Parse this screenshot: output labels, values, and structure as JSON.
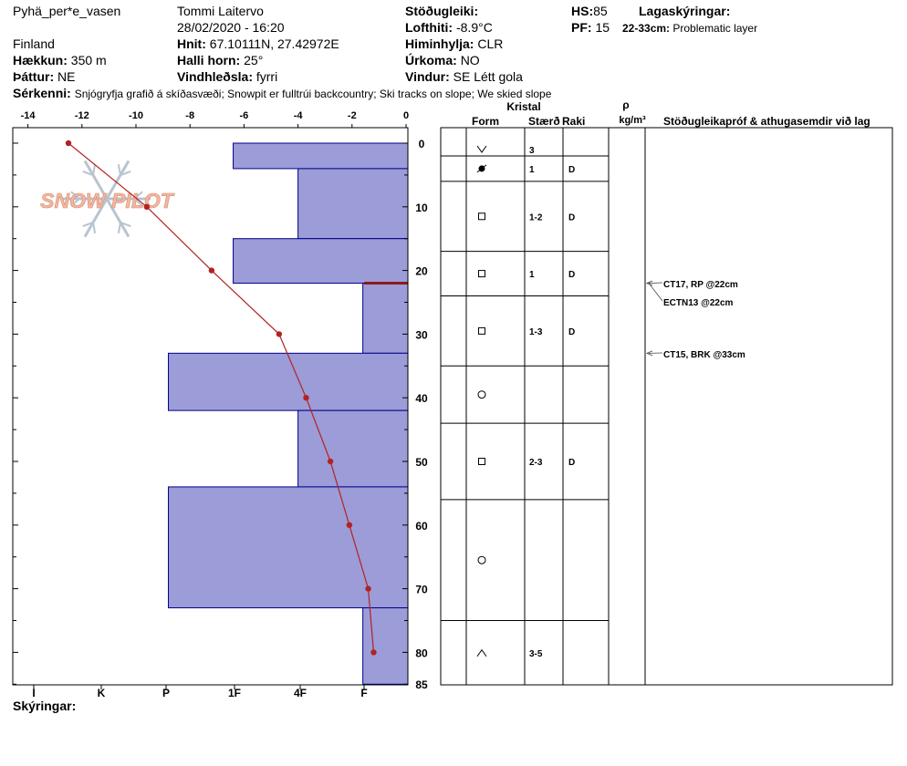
{
  "header": {
    "site": "Pyhä_per*e_vasen",
    "observer": "Tommi Laitervo",
    "datetime": "28/02/2020 - 16:20",
    "country": "Finland",
    "elevation_label": "Hækkun:",
    "elevation": "350 m",
    "aspect_label": "Þáttur:",
    "aspect": "NE",
    "coords_label": "Hnit:",
    "coords": "67.10111N, 27.42972E",
    "slope_label": "Halli horn:",
    "slope": "25°",
    "wind_loading_label": "Vindhleðsla:",
    "wind_loading": "fyrri",
    "stability_label": "Stöðugleiki:",
    "stability": "",
    "airtemp_label": "Lofthiti:",
    "airtemp": "-8.9°C",
    "sky_label": "Himinhylja:",
    "sky": "CLR",
    "precip_label": "Úrkoma:",
    "precip": "NO",
    "wind_label": "Vindur:",
    "wind": "SE Létt gola",
    "hs_label": "HS:",
    "hs": "85",
    "pf_label": "PF:",
    "pf": "15",
    "layer_notes_label": "Lagaskýringar:",
    "layer_note_range": "22-33cm:",
    "layer_note_text": "Problematic layer",
    "specifics_label": "Sérkenni:",
    "specifics": "Snjógryfja grafið á skíðasvæði; Snowpit er fulltrúi backcountry; Ski tracks on slope; We skied slope",
    "notes_label": "Skýringar:"
  },
  "logo_text": "SNOW PILOT",
  "columns": {
    "kristal": "Kristal",
    "form": "Form",
    "size": "Stærð",
    "moisture": "Raki",
    "rho": "ρ",
    "density_unit": "kg/m³",
    "tests": "Stöðugleikapróf & athugasemdir við lag"
  },
  "colors": {
    "hardness_fill": "#9c9cd8",
    "hardness_stroke": "#00008b",
    "temp_line": "#b22222",
    "problem_layer": "#8b1a1a",
    "logo": "#f2b7a0",
    "flake": "#b8c4d0"
  },
  "chart_data": {
    "type": "snow_profile",
    "depth_axis": {
      "range": [
        0,
        85
      ],
      "ticks": [
        0,
        10,
        20,
        30,
        40,
        50,
        60,
        70,
        80,
        85
      ]
    },
    "temperature_axis": {
      "range": [
        -14,
        0
      ],
      "ticks": [
        -14,
        -12,
        -10,
        -8,
        -6,
        -4,
        -2,
        0
      ]
    },
    "hardness_axis": {
      "labels": [
        "I",
        "K",
        "P",
        "1F",
        "4F",
        "F"
      ]
    },
    "hardness_layers": [
      {
        "top": 0,
        "bottom": 4,
        "temp_equiv": -6.4
      },
      {
        "top": 4,
        "bottom": 15,
        "temp_equiv": -4.0
      },
      {
        "top": 15,
        "bottom": 22,
        "temp_equiv": -6.4
      },
      {
        "top": 22,
        "bottom": 33,
        "temp_equiv": -1.6
      },
      {
        "top": 33,
        "bottom": 42,
        "temp_equiv": -8.8
      },
      {
        "top": 42,
        "bottom": 54,
        "temp_equiv": -4.0
      },
      {
        "top": 54,
        "bottom": 73,
        "temp_equiv": -8.8
      },
      {
        "top": 73,
        "bottom": 85,
        "temp_equiv": -1.6
      }
    ],
    "problem_layer_depth": 22,
    "temperature_profile": [
      {
        "depth": 0,
        "temp": -12.5
      },
      {
        "depth": 10,
        "temp": -9.6
      },
      {
        "depth": 20,
        "temp": -7.2
      },
      {
        "depth": 30,
        "temp": -4.7
      },
      {
        "depth": 40,
        "temp": -3.7
      },
      {
        "depth": 50,
        "temp": -2.8
      },
      {
        "depth": 60,
        "temp": -2.1
      },
      {
        "depth": 70,
        "temp": -1.4
      },
      {
        "depth": 80,
        "temp": -1.2
      }
    ],
    "crystal_rows": [
      {
        "top": 0,
        "bottom": 2,
        "form": "v",
        "size": "3",
        "moisture": ""
      },
      {
        "top": 2,
        "bottom": 6,
        "form": "dot",
        "size": "1",
        "moisture": "D"
      },
      {
        "top": 6,
        "bottom": 17,
        "form": "square",
        "size": "1-2",
        "moisture": "D"
      },
      {
        "top": 17,
        "bottom": 24,
        "form": "square",
        "size": "1",
        "moisture": "D"
      },
      {
        "top": 24,
        "bottom": 35,
        "form": "square",
        "size": "1-3",
        "moisture": "D"
      },
      {
        "top": 35,
        "bottom": 44,
        "form": "circle",
        "size": "",
        "moisture": ""
      },
      {
        "top": 44,
        "bottom": 56,
        "form": "square",
        "size": "2-3",
        "moisture": "D"
      },
      {
        "top": 56,
        "bottom": 75,
        "form": "circle",
        "size": "",
        "moisture": ""
      },
      {
        "top": 75,
        "bottom": 87,
        "form": "caret",
        "size": "3-5",
        "moisture": ""
      }
    ],
    "stability_tests": [
      {
        "label": "CT17, RP @22cm",
        "depth": 22
      },
      {
        "label": "ECTN13 @22cm",
        "depth": 22
      },
      {
        "label": "CT15, BRK @33cm",
        "depth": 33
      }
    ]
  }
}
